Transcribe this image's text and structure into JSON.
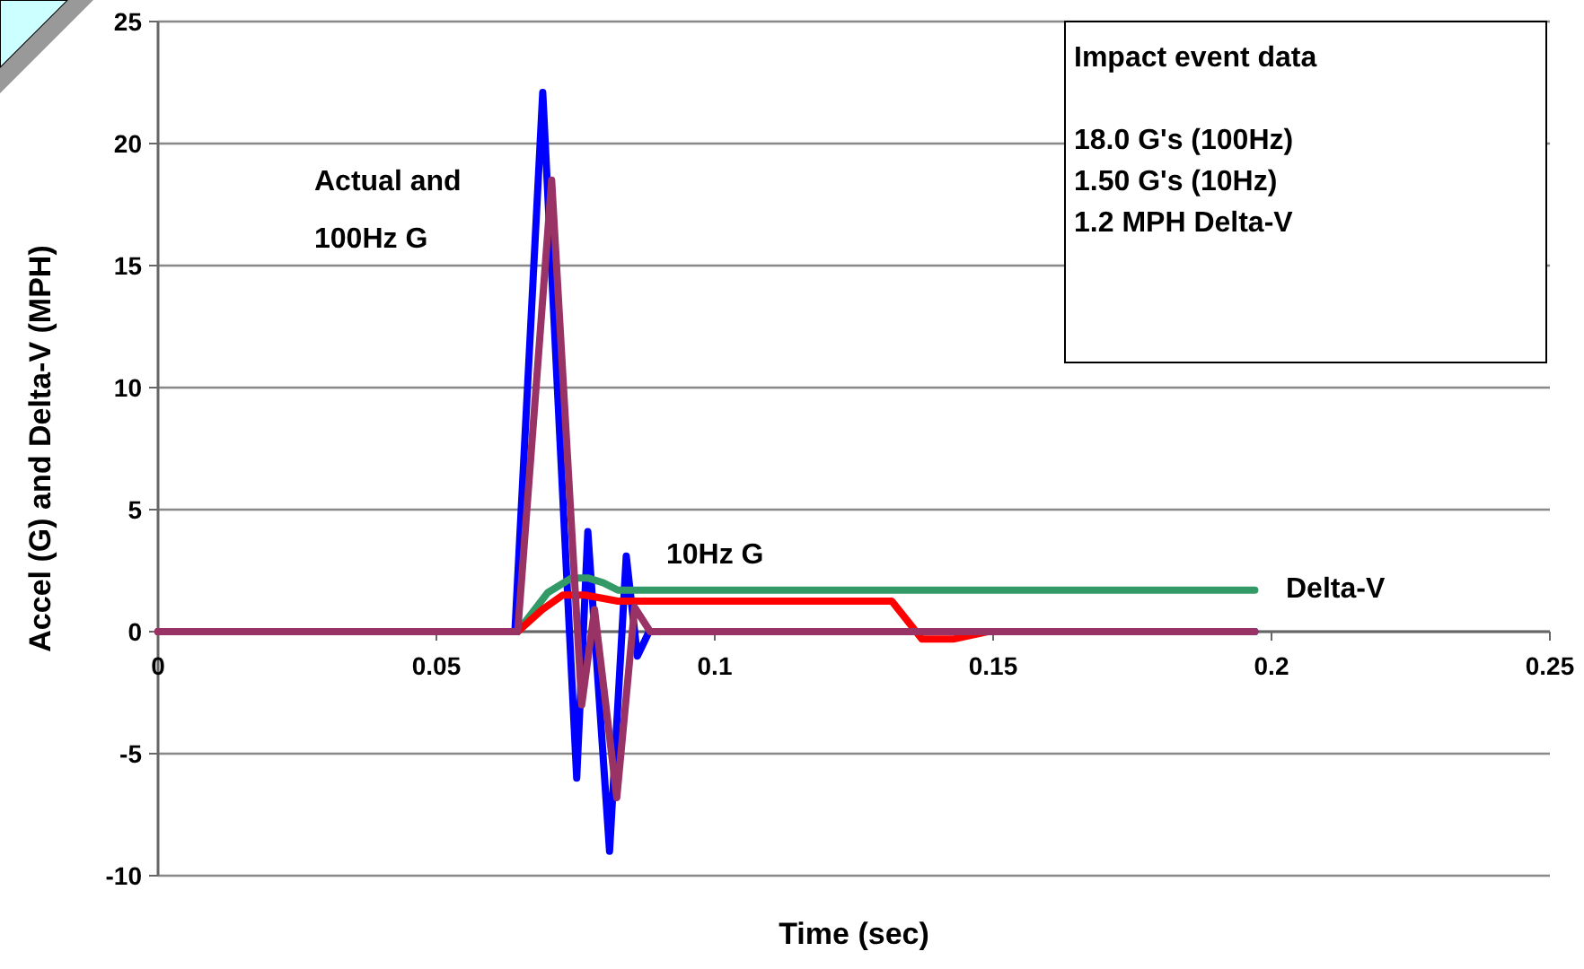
{
  "chart_data": {
    "type": "line",
    "xlabel": "Time (sec)",
    "ylabel": "Accel (G) and Delta-V (MPH)",
    "xlim": [
      0,
      0.25
    ],
    "xticks": [
      0,
      0.05,
      0.1,
      0.15,
      0.2,
      0.25
    ],
    "ylim": [
      -10,
      25
    ],
    "yticks": [
      -10,
      -5,
      0,
      5,
      10,
      15,
      20,
      25
    ],
    "grid": "y",
    "marker": "none",
    "line_style": "solid",
    "series": [
      {
        "color": "#0000ff",
        "x": [
          0,
          0.0641,
          0.0691,
          0.0752,
          0.0772,
          0.0811,
          0.0841,
          0.0861,
          0.0882,
          0.197
        ],
        "values": [
          0,
          0,
          22.1,
          -6,
          4.1,
          -9,
          3.1,
          -1,
          0,
          0
        ]
      },
      {
        "color": "#339966",
        "x": [
          0,
          0.0646,
          0.07,
          0.0743,
          0.0772,
          0.08,
          0.0826,
          0.197
        ],
        "values": [
          0,
          0,
          1.6,
          2.2,
          2.2,
          2,
          1.7,
          1.7
        ]
      },
      {
        "color": "#ff0000",
        "x": [
          0,
          0.0646,
          0.069,
          0.0727,
          0.0767,
          0.0826,
          0.1318,
          0.1372,
          0.143,
          0.149
        ],
        "values": [
          0,
          0,
          0.9,
          1.5,
          1.5,
          1.25,
          1.25,
          -0.3,
          -0.3,
          0
        ]
      },
      {
        "color": "#993366",
        "x": [
          0,
          0.0646,
          0.0707,
          0.0761,
          0.0784,
          0.0824,
          0.0856,
          0.0884,
          0.197
        ],
        "values": [
          0,
          0,
          18.5,
          -3,
          0.9,
          -6.8,
          1,
          0,
          0
        ]
      }
    ],
    "annotations": [
      "Actual and\n100Hz G",
      "10Hz G",
      "Delta-V",
      "Impact event data\n\n18.0 G's (100Hz)\n1.50 G's (10Hz)\n1.2 MPH Delta-V"
    ]
  }
}
